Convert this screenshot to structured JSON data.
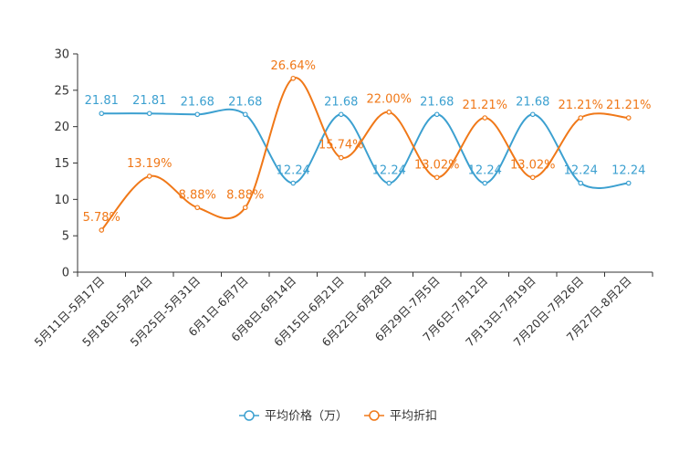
{
  "chart_data": {
    "type": "line",
    "title": "",
    "xlabel": "",
    "ylabel": "",
    "ylim": [
      0,
      30
    ],
    "yticks": [
      0,
      5,
      10,
      15,
      20,
      25,
      30
    ],
    "grid": false,
    "legend_position": "bottom-center",
    "categories": [
      "5月11日-5月17日",
      "5月18日-5月24日",
      "5月25日-5月31日",
      "6月1日-6月7日",
      "6月8日-6月14日",
      "6月15日-6月21日",
      "6月22日-6月28日",
      "6月29日-7月5日",
      "7月6日-7月12日",
      "7月13日-7月19日",
      "7月20日-7月26日",
      "7月27日-8月2日"
    ],
    "series": [
      {
        "name": "平均价格（万）",
        "color": "#3ca0d0",
        "values": [
          21.81,
          21.81,
          21.68,
          21.68,
          12.24,
          21.68,
          12.24,
          21.68,
          12.24,
          21.68,
          12.24,
          12.24
        ],
        "labels": [
          "21.81",
          "21.81",
          "21.68",
          "21.68",
          "12.24",
          "21.68",
          "12.24",
          "21.68",
          "12.24",
          "21.68",
          "12.24",
          "12.24"
        ]
      },
      {
        "name": "平均折扣",
        "color": "#f07818",
        "values": [
          5.78,
          13.19,
          8.88,
          8.88,
          26.64,
          15.74,
          22.0,
          13.02,
          21.21,
          13.02,
          21.21,
          21.21
        ],
        "labels": [
          "5.78%",
          "13.19%",
          "8.88%",
          "8.88%",
          "26.64%",
          "15.74%",
          "22.00%",
          "13.02%",
          "21.21%",
          "13.02%",
          "21.21%",
          "21.21%"
        ]
      }
    ]
  }
}
